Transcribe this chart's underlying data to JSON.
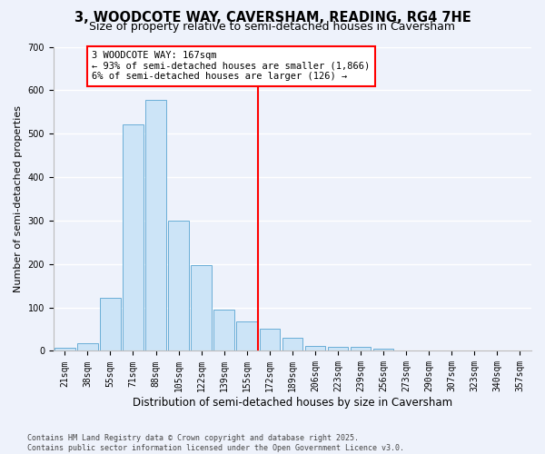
{
  "title": "3, WOODCOTE WAY, CAVERSHAM, READING, RG4 7HE",
  "subtitle": "Size of property relative to semi-detached houses in Caversham",
  "xlabel": "Distribution of semi-detached houses by size in Caversham",
  "ylabel": "Number of semi-detached properties",
  "categories": [
    "21sqm",
    "38sqm",
    "55sqm",
    "71sqm",
    "88sqm",
    "105sqm",
    "122sqm",
    "139sqm",
    "155sqm",
    "172sqm",
    "189sqm",
    "206sqm",
    "223sqm",
    "239sqm",
    "256sqm",
    "273sqm",
    "290sqm",
    "307sqm",
    "323sqm",
    "340sqm",
    "357sqm"
  ],
  "bar_heights": [
    8,
    18,
    122,
    522,
    577,
    300,
    198,
    96,
    68,
    51,
    30,
    12,
    10,
    9,
    5,
    0,
    0,
    0,
    0,
    0,
    0
  ],
  "bar_color": "#cce4f7",
  "bar_edge_color": "#6aaed6",
  "bar_edge_width": 0.7,
  "vline_color": "red",
  "vline_pos": 8.5,
  "annotation_text": "3 WOODCOTE WAY: 167sqm\n← 93% of semi-detached houses are smaller (1,866)\n6% of semi-detached houses are larger (126) →",
  "annotation_box_color": "red",
  "annotation_box_facecolor": "white",
  "ylim": [
    0,
    700
  ],
  "yticks": [
    0,
    100,
    200,
    300,
    400,
    500,
    600,
    700
  ],
  "background_color": "#eef2fb",
  "grid_color": "white",
  "footer": "Contains HM Land Registry data © Crown copyright and database right 2025.\nContains public sector information licensed under the Open Government Licence v3.0.",
  "title_fontsize": 10.5,
  "subtitle_fontsize": 9,
  "xlabel_fontsize": 8.5,
  "ylabel_fontsize": 8,
  "tick_fontsize": 7,
  "annotation_fontsize": 7.5,
  "footer_fontsize": 6
}
